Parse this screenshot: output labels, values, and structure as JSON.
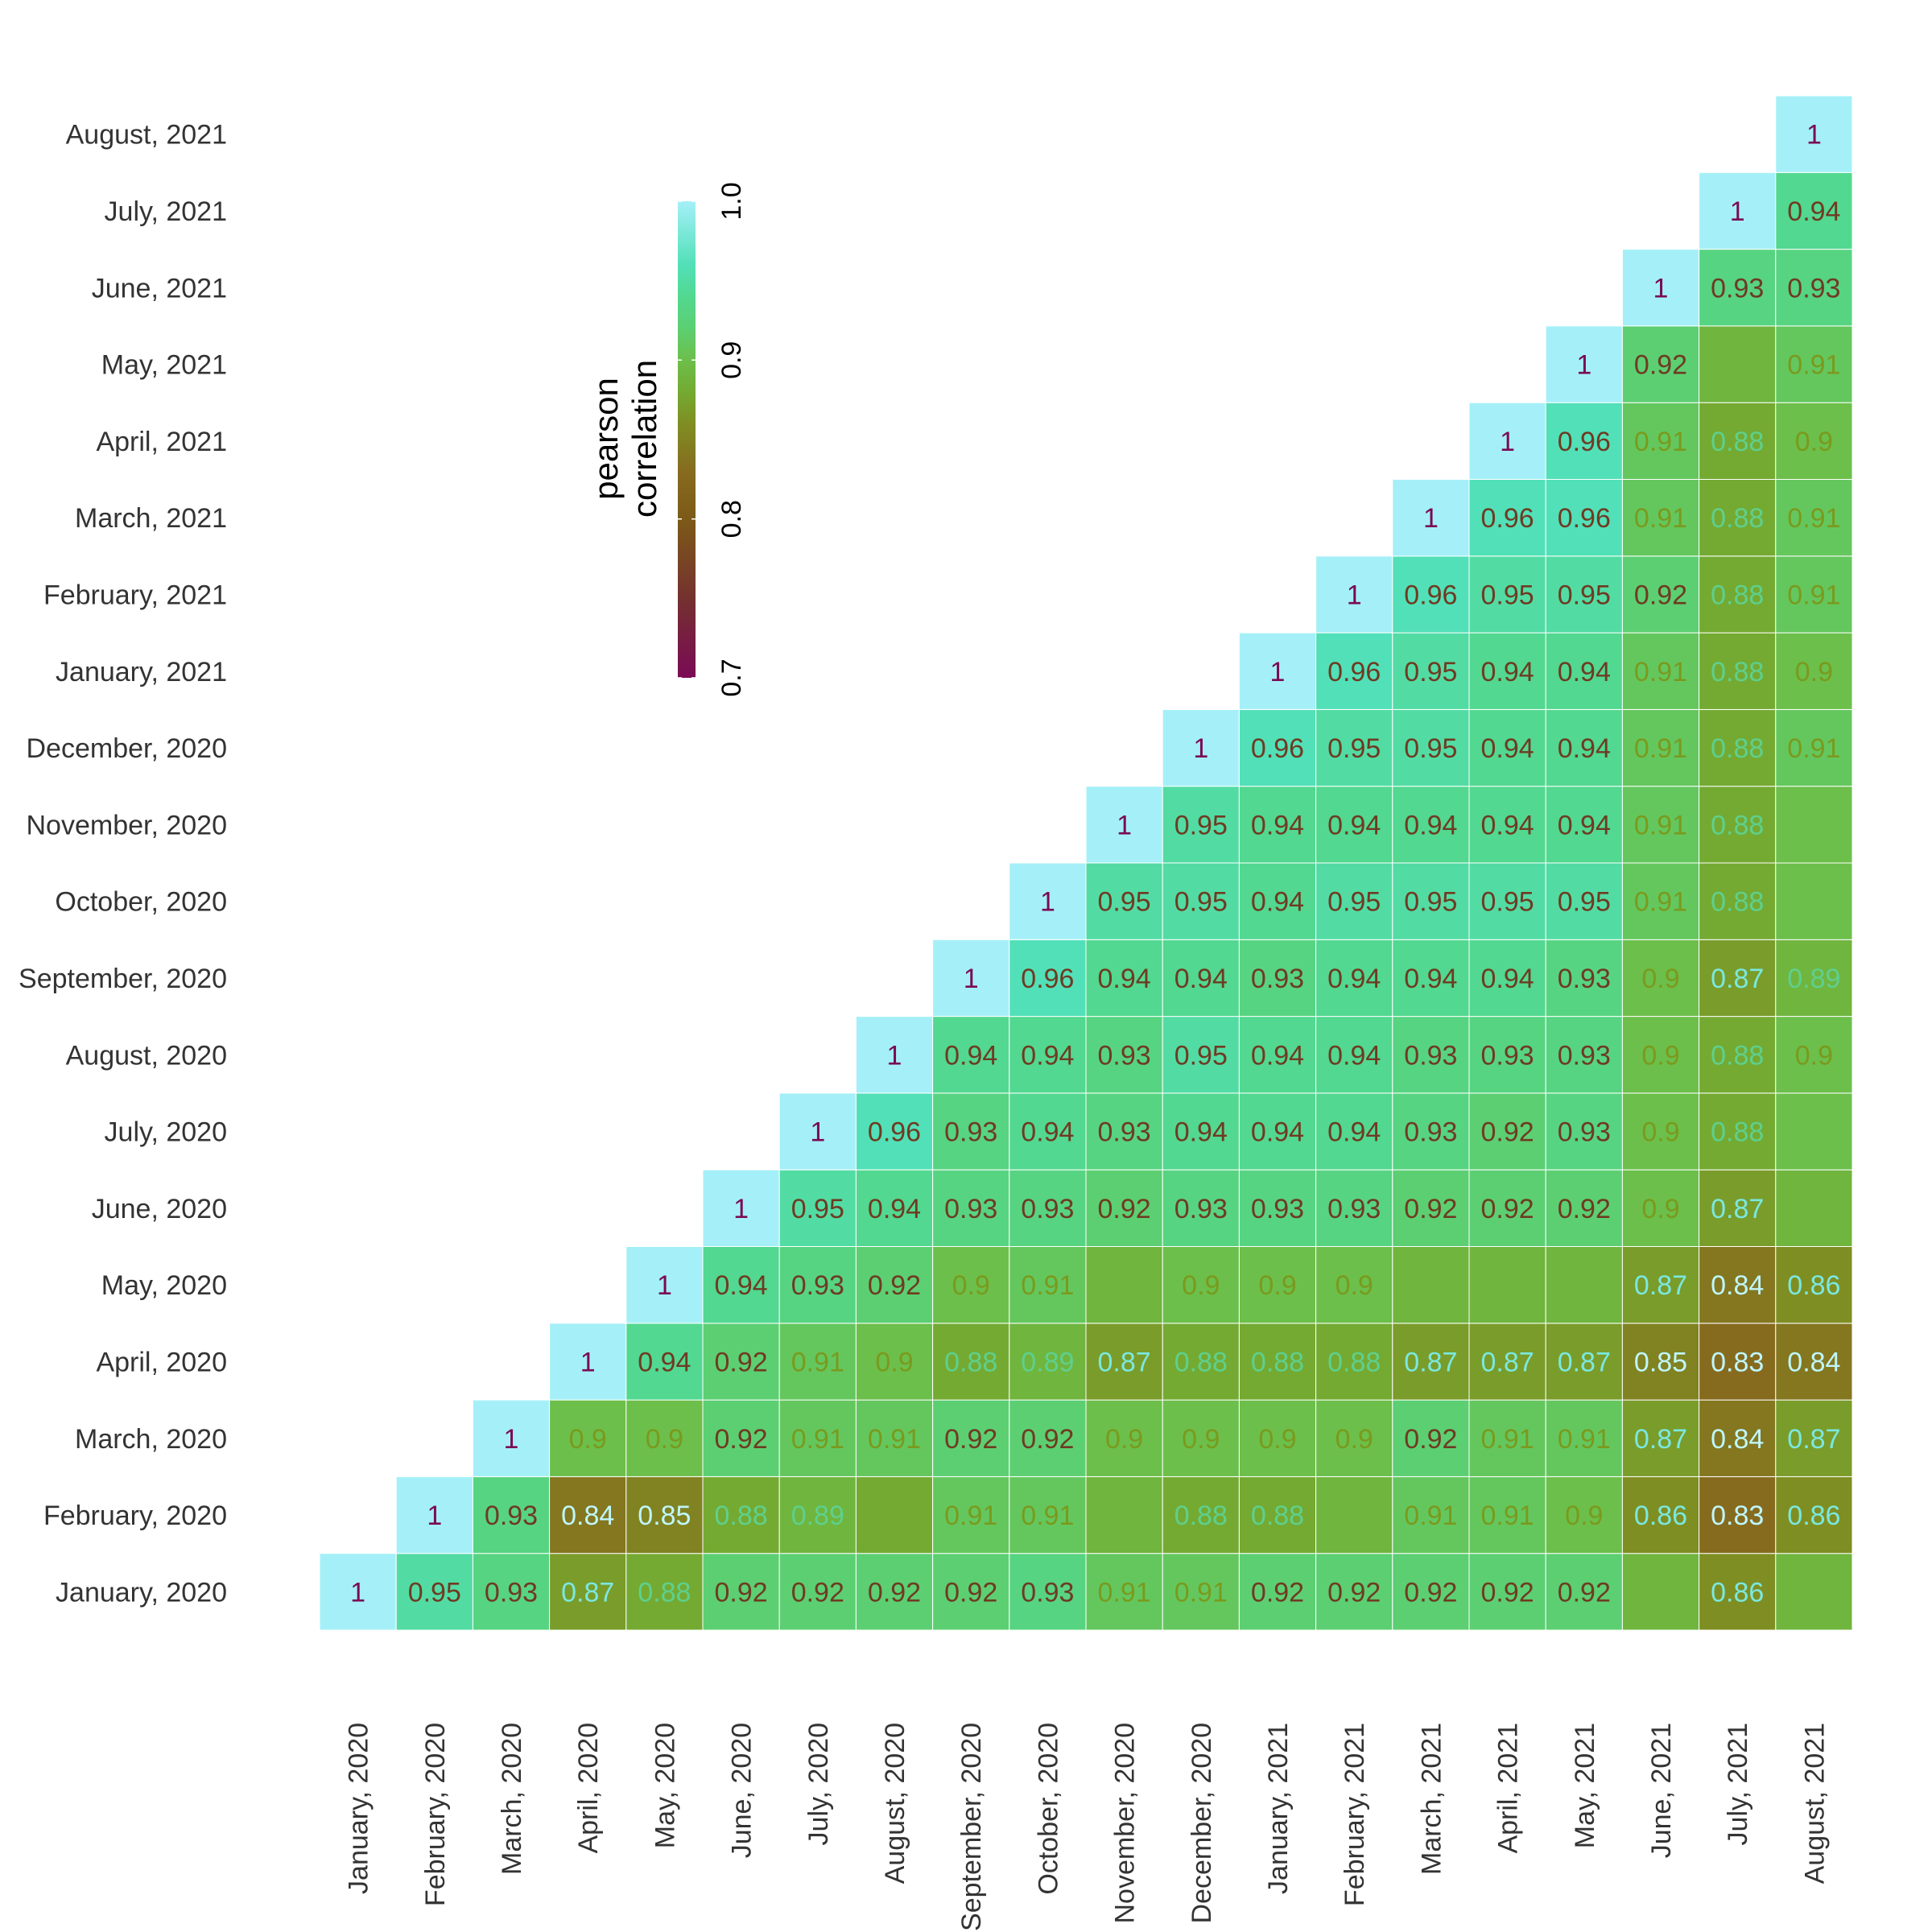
{
  "chart_data": {
    "type": "heatmap",
    "title": "",
    "xlabel": "",
    "ylabel": "",
    "labels": [
      "January, 2020",
      "February, 2020",
      "March, 2020",
      "April, 2020",
      "May, 2020",
      "June, 2020",
      "July, 2020",
      "August, 2020",
      "September, 2020",
      "October, 2020",
      "November, 2020",
      "December, 2020",
      "January, 2021",
      "February, 2021",
      "March, 2021",
      "April, 2021",
      "May, 2021",
      "June, 2021",
      "July, 2021",
      "August, 2021"
    ],
    "matrix": [
      [
        1
      ],
      [
        0.95,
        1
      ],
      [
        0.93,
        0.93,
        1
      ],
      [
        0.87,
        0.84,
        0.9,
        1
      ],
      [
        0.88,
        0.85,
        0.9,
        0.94,
        1
      ],
      [
        0.92,
        0.88,
        0.92,
        0.92,
        0.94,
        1
      ],
      [
        0.92,
        0.89,
        0.91,
        0.91,
        0.93,
        0.95,
        1
      ],
      [
        0.92,
        0.88,
        0.91,
        0.9,
        0.92,
        0.94,
        0.96,
        1
      ],
      [
        0.92,
        0.91,
        0.92,
        0.88,
        0.9,
        0.93,
        0.93,
        0.94,
        1
      ],
      [
        0.93,
        0.91,
        0.92,
        0.89,
        0.91,
        0.93,
        0.94,
        0.94,
        0.96,
        1
      ],
      [
        0.91,
        0.89,
        0.9,
        0.87,
        0.89,
        0.92,
        0.93,
        0.93,
        0.94,
        0.95,
        1
      ],
      [
        0.91,
        0.88,
        0.9,
        0.88,
        0.9,
        0.93,
        0.94,
        0.95,
        0.94,
        0.95,
        0.95,
        1
      ],
      [
        0.92,
        0.88,
        0.9,
        0.88,
        0.9,
        0.93,
        0.94,
        0.94,
        0.93,
        0.94,
        0.94,
        0.96,
        1
      ],
      [
        0.92,
        0.89,
        0.9,
        0.88,
        0.9,
        0.93,
        0.94,
        0.94,
        0.94,
        0.95,
        0.94,
        0.95,
        0.96,
        1
      ],
      [
        0.92,
        0.91,
        0.92,
        0.87,
        0.89,
        0.92,
        0.93,
        0.93,
        0.94,
        0.95,
        0.94,
        0.95,
        0.95,
        0.96,
        1
      ],
      [
        0.92,
        0.91,
        0.91,
        0.87,
        0.89,
        0.92,
        0.92,
        0.93,
        0.94,
        0.95,
        0.94,
        0.94,
        0.94,
        0.95,
        0.96,
        1
      ],
      [
        0.92,
        0.9,
        0.91,
        0.87,
        0.89,
        0.92,
        0.93,
        0.93,
        0.93,
        0.95,
        0.94,
        0.94,
        0.94,
        0.95,
        0.96,
        0.96,
        1
      ],
      [
        0.89,
        0.86,
        0.87,
        0.85,
        0.87,
        0.9,
        0.9,
        0.9,
        0.9,
        0.91,
        0.91,
        0.91,
        0.91,
        0.92,
        0.91,
        0.91,
        0.92,
        1
      ],
      [
        0.86,
        0.83,
        0.84,
        0.83,
        0.84,
        0.87,
        0.88,
        0.88,
        0.87,
        0.88,
        0.88,
        0.88,
        0.88,
        0.88,
        0.88,
        0.88,
        0.89,
        0.93,
        1
      ],
      [
        0.89,
        0.86,
        0.87,
        0.84,
        0.86,
        0.89,
        0.9,
        0.9,
        0.89,
        0.9,
        0.9,
        0.91,
        0.9,
        0.91,
        0.91,
        0.9,
        0.91,
        0.93,
        0.94,
        1
      ]
    ],
    "hidden_value_cells": [
      [
        7,
        1
      ],
      [
        10,
        1
      ],
      [
        13,
        1
      ],
      [
        10,
        4
      ],
      [
        14,
        4
      ],
      [
        15,
        4
      ],
      [
        16,
        4
      ],
      [
        17,
        0
      ],
      [
        19,
        0
      ],
      [
        19,
        5
      ],
      [
        19,
        9
      ],
      [
        18,
        16
      ],
      [
        19,
        10
      ],
      [
        19,
        6
      ]
    ],
    "colorscale": {
      "min": 0.7,
      "max": 1.0,
      "stops": [
        {
          "v": 0.7,
          "color": "#7a0a55"
        },
        {
          "v": 0.75,
          "color": "#74312f"
        },
        {
          "v": 0.8,
          "color": "#7c5a18"
        },
        {
          "v": 0.83,
          "color": "#866b1f"
        },
        {
          "v": 0.86,
          "color": "#7f8e22"
        },
        {
          "v": 0.88,
          "color": "#74aa32"
        },
        {
          "v": 0.9,
          "color": "#6cbf4a"
        },
        {
          "v": 0.92,
          "color": "#5ccf72"
        },
        {
          "v": 0.94,
          "color": "#52d890"
        },
        {
          "v": 0.96,
          "color": "#52e0b8"
        },
        {
          "v": 1.0,
          "color": "#a5f0f8"
        }
      ]
    },
    "legend": {
      "title_lines": [
        "pearson",
        "correlation"
      ],
      "ticks": [
        "0.7",
        "0.8",
        "0.9",
        "1.0"
      ],
      "tick_values": [
        0.7,
        0.8,
        0.9,
        1.0
      ],
      "placement": "top-left"
    },
    "grid": false
  }
}
